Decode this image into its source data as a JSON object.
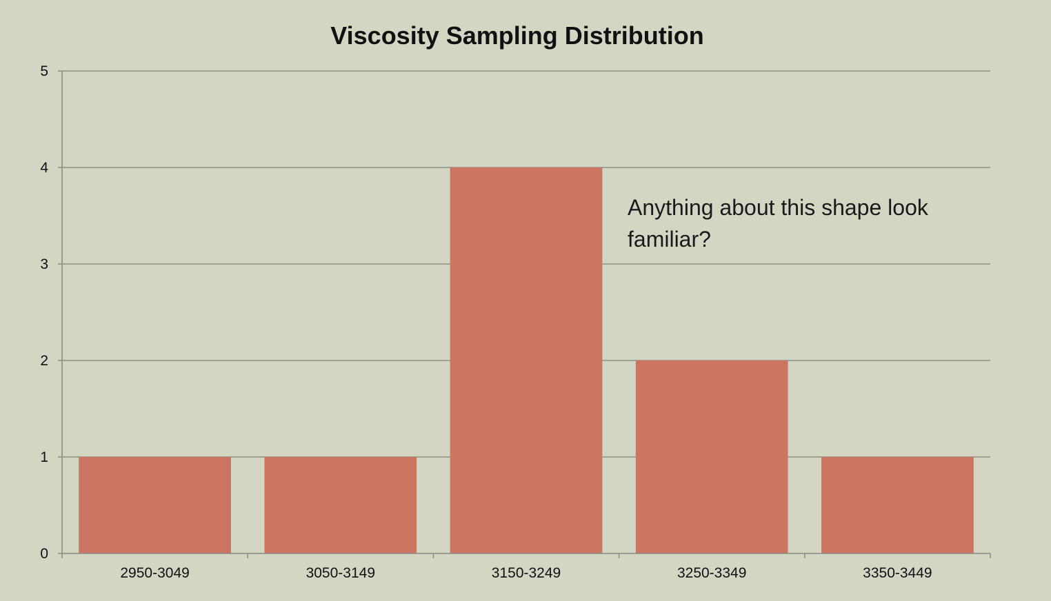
{
  "chart_data": {
    "type": "bar",
    "title": "Viscosity Sampling Distribution",
    "categories": [
      "2950-3049",
      "3050-3149",
      "3150-3249",
      "3250-3349",
      "3350-3449"
    ],
    "values": [
      1,
      1,
      4,
      2,
      1
    ],
    "ylim": [
      0,
      5
    ],
    "yticks": [
      0,
      1,
      2,
      3,
      4,
      5
    ],
    "grid": true,
    "bar_color": "#cc7562",
    "annotation": {
      "line1": "Anything about this shape look",
      "line2": "familiar?"
    }
  }
}
